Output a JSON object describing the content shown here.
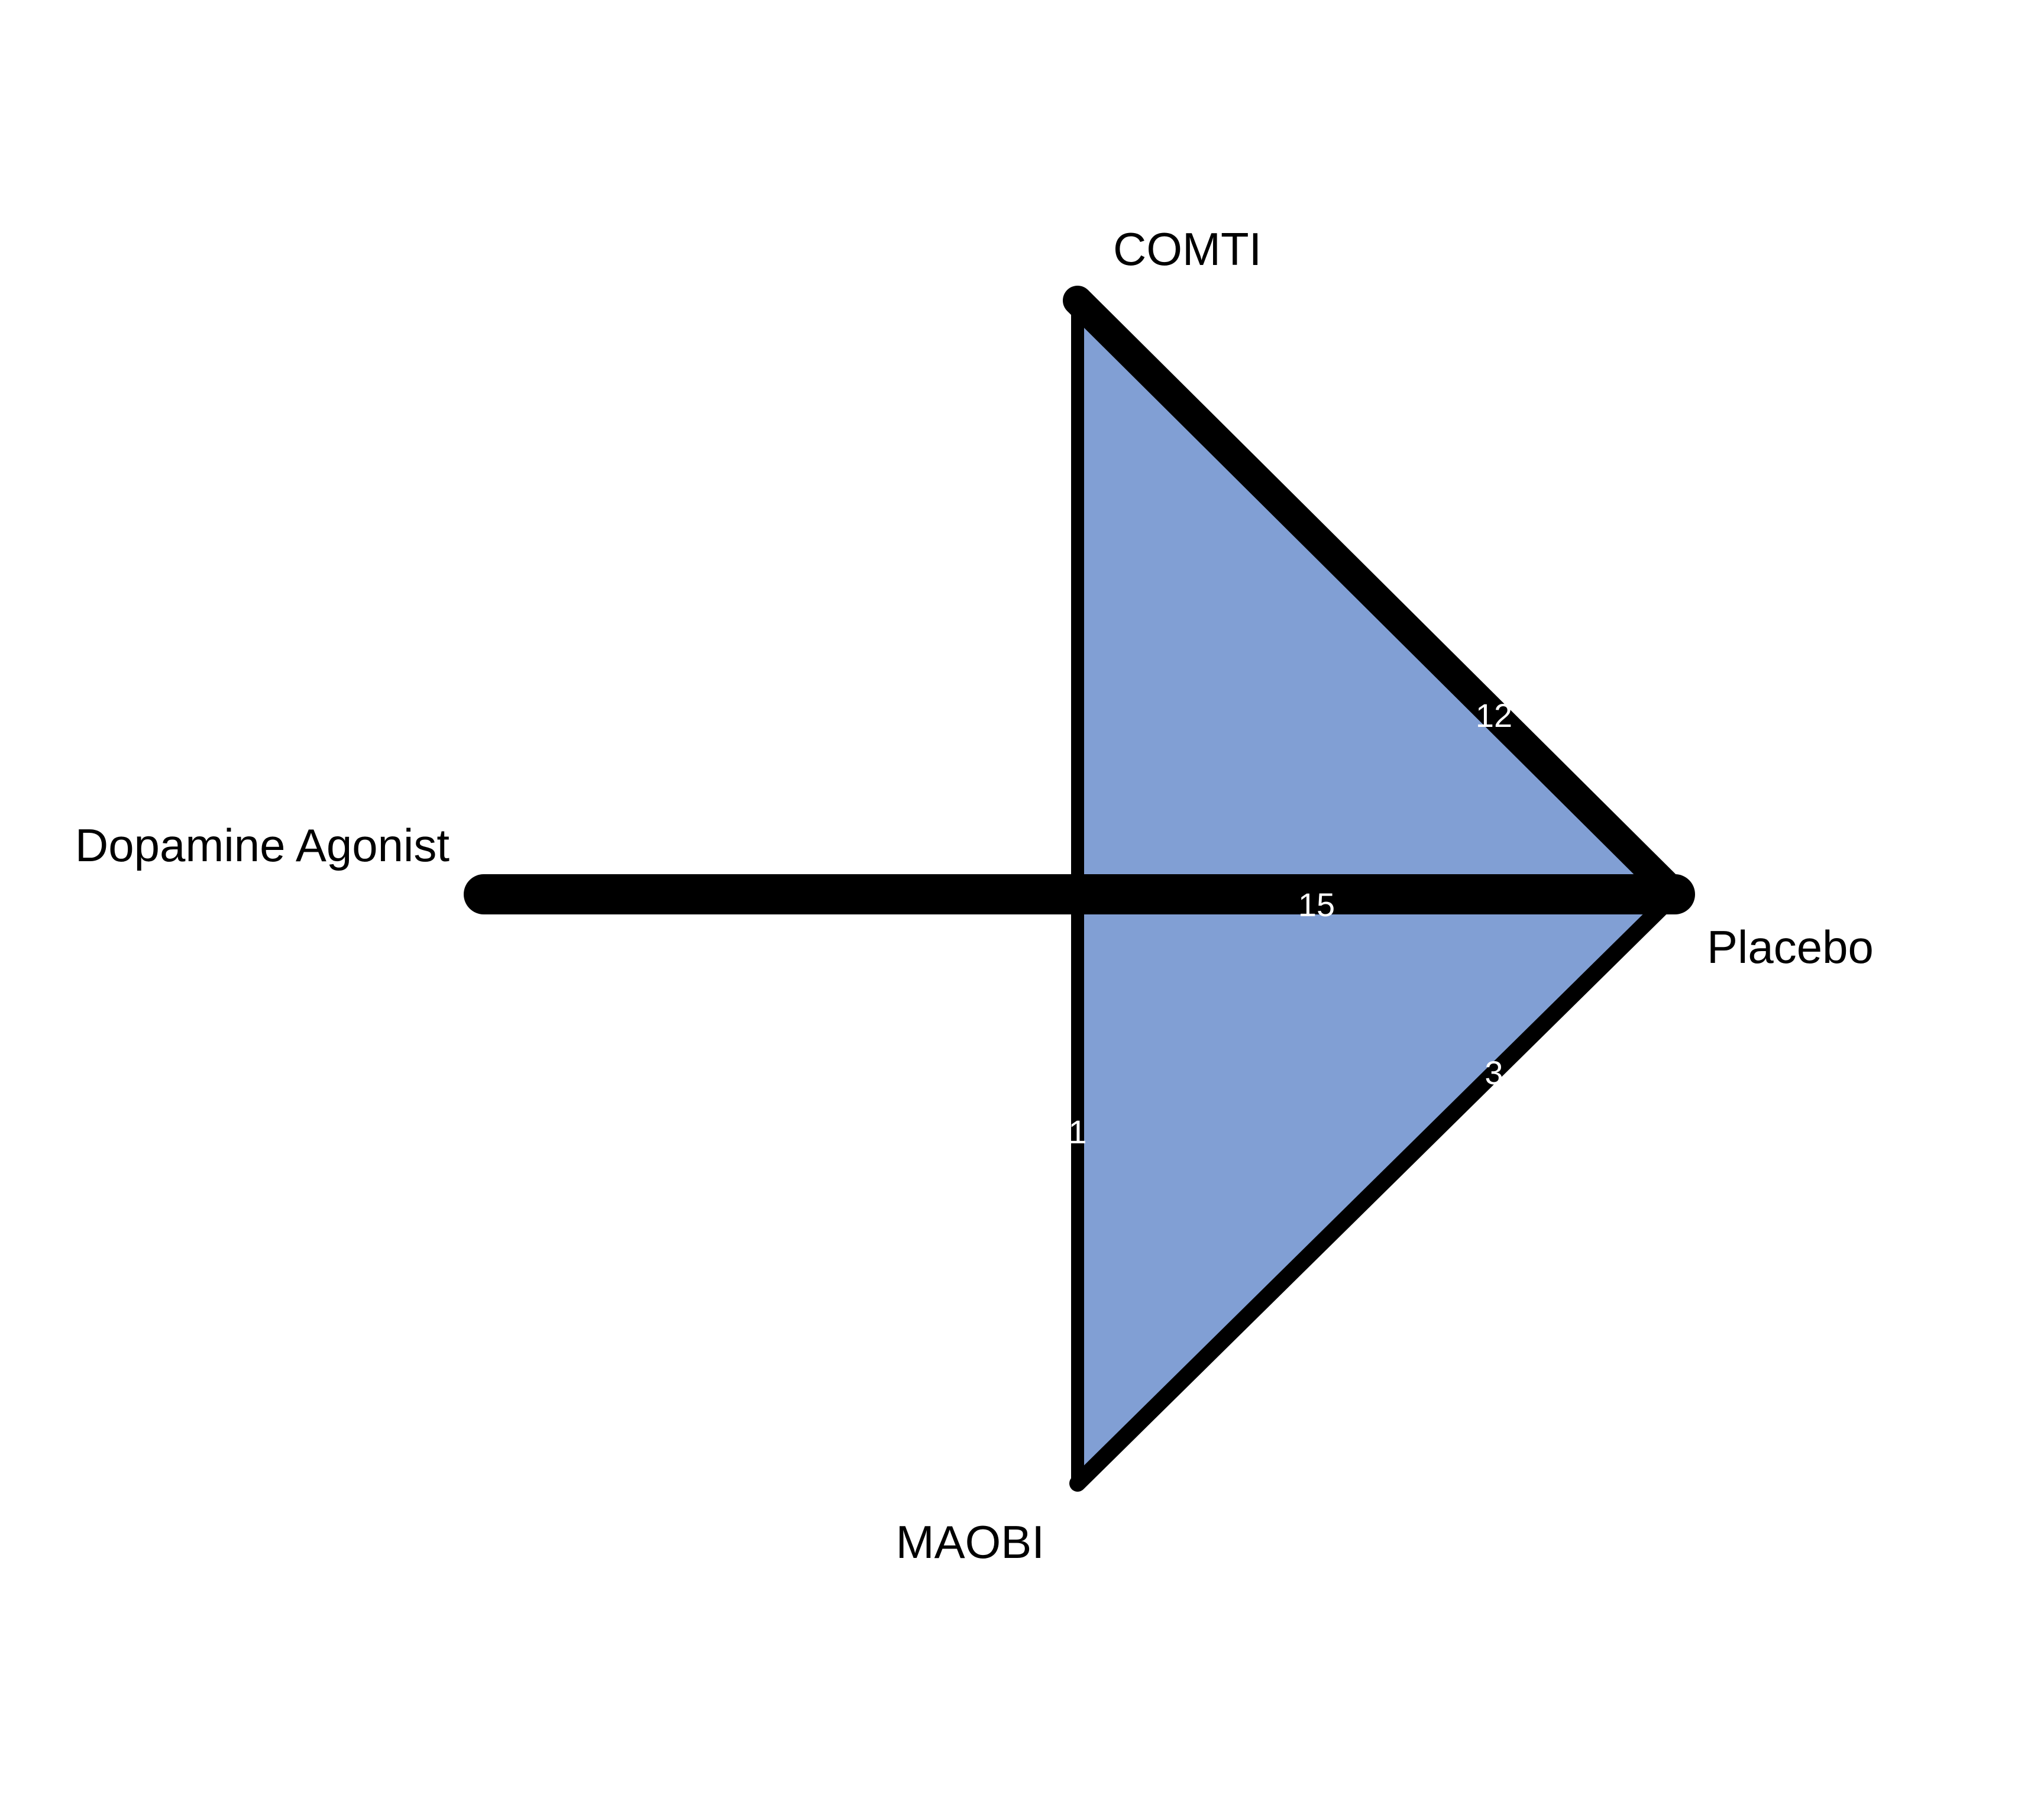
{
  "chart_data": {
    "type": "network",
    "nodes": [
      {
        "id": "comti",
        "label": "COMTI"
      },
      {
        "id": "placebo",
        "label": "Placebo"
      },
      {
        "id": "dopamine",
        "label": "Dopamine Agonist"
      },
      {
        "id": "maobi",
        "label": "MAOBI"
      }
    ],
    "edges": [
      {
        "id": "comti-placebo",
        "from": "comti",
        "to": "placebo",
        "studies": "12"
      },
      {
        "id": "dopamine-placebo",
        "from": "dopamine",
        "to": "placebo",
        "studies": "15"
      },
      {
        "id": "maobi-placebo",
        "from": "maobi",
        "to": "placebo",
        "studies": "3"
      },
      {
        "id": "comti-maobi",
        "from": "comti",
        "to": "maobi",
        "studies": "1"
      }
    ],
    "loops": [
      {
        "id": "comti-maobi-placebo",
        "nodes": [
          "comti",
          "placebo",
          "maobi"
        ]
      }
    ],
    "colors": {
      "loop_fill": "#819fd4",
      "edge": "#000000",
      "node_label": "#000000",
      "edge_label": "#ffffff"
    }
  }
}
